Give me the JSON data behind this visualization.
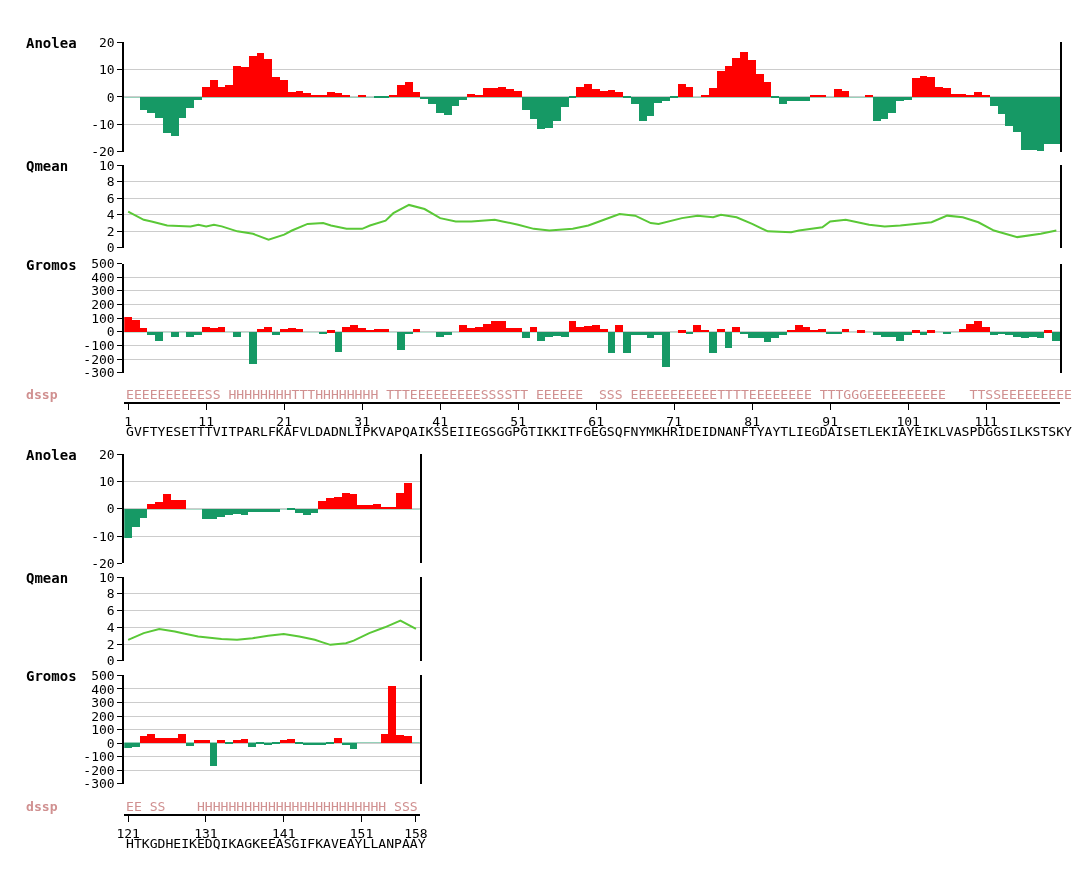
{
  "chart_data": [
    {
      "type": "bar",
      "title": "Anolea",
      "tick_labels": "y",
      "grid": "y",
      "ref_lines": [
        {
          "axis": "y",
          "value": 0,
          "color": "#169965"
        }
      ],
      "xlim": [
        0.5,
        120.5
      ],
      "ylim": [
        -20,
        20
      ],
      "yticks": [
        -20,
        -10,
        0,
        10,
        20
      ],
      "x": [
        1,
        2,
        3,
        4,
        5,
        6,
        7,
        8,
        9,
        10,
        11,
        12,
        13,
        14,
        15,
        16,
        17,
        18,
        19,
        20,
        21,
        22,
        23,
        24,
        25,
        26,
        27,
        28,
        29,
        30,
        31,
        32,
        33,
        34,
        35,
        36,
        37,
        38,
        39,
        40,
        41,
        42,
        43,
        44,
        45,
        46,
        47,
        48,
        49,
        50,
        51,
        52,
        53,
        54,
        55,
        56,
        57,
        58,
        59,
        60,
        61,
        62,
        63,
        64,
        65,
        66,
        67,
        68,
        69,
        70,
        71,
        72,
        73,
        74,
        75,
        76,
        77,
        78,
        79,
        80,
        81,
        82,
        83,
        84,
        85,
        86,
        87,
        88,
        89,
        90,
        91,
        92,
        93,
        94,
        95,
        96,
        97,
        98,
        99,
        100,
        101,
        102,
        103,
        104,
        105,
        106,
        107,
        108,
        109,
        110,
        111,
        112,
        113,
        114,
        115,
        116,
        117,
        118,
        119,
        120
      ],
      "values": [
        0,
        0,
        -4.8,
        -5.9,
        -7.8,
        -13.5,
        -14.5,
        -7.8,
        -4.2,
        -1.2,
        3.6,
        6.1,
        3.6,
        4.2,
        11.2,
        10.7,
        14.8,
        15.8,
        13.6,
        7.1,
        6.1,
        1.6,
        2.2,
        1.2,
        0.6,
        0.6,
        1.6,
        1.2,
        0.6,
        0,
        0.6,
        0,
        -0.6,
        -0.6,
        0.6,
        4.2,
        5.2,
        1.6,
        -0.8,
        -2.9,
        -5.9,
        -6.9,
        -3.3,
        -1.4,
        1.0,
        0.6,
        3.1,
        3.1,
        3.6,
        2.8,
        2.2,
        -4.8,
        -8.4,
        -12.0,
        -11.4,
        -8.9,
        -3.9,
        -0.4,
        3.6,
        4.6,
        2.8,
        2.2,
        2.5,
        1.6,
        -0.4,
        -2.9,
        -8.9,
        -7.2,
        -2.4,
        -1.8,
        -0.6,
        4.6,
        3.6,
        0,
        0.6,
        3.1,
        9.3,
        11.2,
        14.2,
        16.3,
        13.3,
        8.2,
        5.2,
        -0.6,
        -2.9,
        -1.6,
        -1.8,
        -1.8,
        0.6,
        0.6,
        0,
        2.8,
        2.2,
        0,
        0,
        0.6,
        -8.9,
        -8.4,
        -5.9,
        -1.8,
        -1.4,
        6.7,
        7.6,
        7.2,
        3.6,
        3.1,
        1.1,
        1.1,
        0.7,
        1.6,
        0.6,
        -3.3,
        -6.5,
        -10.8,
        -12.9,
        -19.5,
        -19.5,
        -19.9,
        -17.5,
        -17.5
      ],
      "colors": [
        "#169965",
        "#169965",
        "#169965",
        "#169965",
        "#169965",
        "#169965",
        "#169965",
        "#169965",
        "#169965",
        "#169965",
        "#ff0000",
        "#ff0000",
        "#ff0000",
        "#ff0000",
        "#ff0000",
        "#ff0000",
        "#ff0000",
        "#ff0000",
        "#ff0000",
        "#ff0000",
        "#ff0000",
        "#ff0000",
        "#ff0000",
        "#ff0000",
        "#ff0000",
        "#ff0000",
        "#ff0000",
        "#ff0000",
        "#ff0000",
        "#169965",
        "#ff0000",
        "#169965",
        "#169965",
        "#169965",
        "#ff0000",
        "#ff0000",
        "#ff0000",
        "#ff0000",
        "#169965",
        "#169965",
        "#169965",
        "#169965",
        "#169965",
        "#169965",
        "#ff0000",
        "#ff0000",
        "#ff0000",
        "#ff0000",
        "#ff0000",
        "#ff0000",
        "#ff0000",
        "#169965",
        "#169965",
        "#169965",
        "#169965",
        "#169965",
        "#169965",
        "#169965",
        "#ff0000",
        "#ff0000",
        "#ff0000",
        "#ff0000",
        "#ff0000",
        "#ff0000",
        "#169965",
        "#169965",
        "#169965",
        "#169965",
        "#169965",
        "#169965",
        "#169965",
        "#ff0000",
        "#ff0000",
        "#169965",
        "#ff0000",
        "#ff0000",
        "#ff0000",
        "#ff0000",
        "#ff0000",
        "#ff0000",
        "#ff0000",
        "#ff0000",
        "#ff0000",
        "#169965",
        "#169965",
        "#169965",
        "#169965",
        "#169965",
        "#ff0000",
        "#ff0000",
        "#169965",
        "#ff0000",
        "#ff0000",
        "#169965",
        "#169965",
        "#ff0000",
        "#169965",
        "#169965",
        "#169965",
        "#169965",
        "#169965",
        "#ff0000",
        "#ff0000",
        "#ff0000",
        "#ff0000",
        "#ff0000",
        "#ff0000",
        "#ff0000",
        "#ff0000",
        "#ff0000",
        "#ff0000",
        "#169965",
        "#169965",
        "#169965",
        "#169965",
        "#169965",
        "#169965",
        "#169965",
        "#169965",
        "#169965"
      ]
    },
    {
      "type": "line",
      "title": "Qmean",
      "tick_labels": "y",
      "grid": "y",
      "xlim": [
        0.5,
        120.5
      ],
      "ylim": [
        0,
        10
      ],
      "yticks": [
        0,
        2,
        4,
        6,
        8,
        10
      ],
      "color": "#5ac837",
      "x": [
        1,
        3,
        4,
        6,
        9,
        10,
        11,
        12,
        13,
        15,
        17,
        19,
        21,
        22,
        24,
        26,
        27,
        29,
        31,
        32,
        34,
        35,
        37,
        39,
        41,
        43,
        45,
        48,
        49,
        51,
        53,
        55,
        58,
        60,
        62,
        64,
        66,
        68,
        69,
        72,
        74,
        76,
        77,
        79,
        81,
        83,
        86,
        87,
        90,
        91,
        93,
        96,
        98,
        100,
        104,
        106,
        108,
        110,
        112,
        115,
        118,
        120
      ],
      "values": [
        4.4,
        3.4,
        3.2,
        2.7,
        2.6,
        2.8,
        2.6,
        2.8,
        2.6,
        2.0,
        1.7,
        1.0,
        1.6,
        2.1,
        2.9,
        3.0,
        2.7,
        2.3,
        2.3,
        2.7,
        3.3,
        4.2,
        5.2,
        4.7,
        3.6,
        3.2,
        3.2,
        3.4,
        3.2,
        2.8,
        2.3,
        2.1,
        2.3,
        2.7,
        3.4,
        4.1,
        3.9,
        3.0,
        2.9,
        3.6,
        3.9,
        3.7,
        4.0,
        3.7,
        2.9,
        2.0,
        1.9,
        2.1,
        2.5,
        3.2,
        3.4,
        2.8,
        2.6,
        2.7,
        3.1,
        3.9,
        3.7,
        3.1,
        2.1,
        1.3,
        1.7,
        2.1
      ]
    },
    {
      "type": "bar",
      "title": "Gromos",
      "grid": "y",
      "ref_lines": [
        {
          "axis": "y",
          "value": 0,
          "color": "#169965"
        }
      ],
      "xlim": [
        0.5,
        120.5
      ],
      "xticks": [
        1,
        11,
        21,
        31,
        41,
        51,
        61,
        71,
        81,
        91,
        101,
        111
      ],
      "ylim": [
        -300,
        500
      ],
      "yticks": [
        -300,
        -200,
        -100,
        0,
        100,
        200,
        300,
        400,
        500
      ],
      "annotations": [
        "dssp",
        "EEEEEEEEEESS HHHHHHHHTTTHHHHHHHH TTTEEEEEEEEESSSSTT EEEEEE  SSS EEEEEEEEEEETTTTEEEEEEEE TTTGGGEEEEEEEEEE   TTSSEEEEEEEEE",
        "GVFTYESETTTVITPARLFKAFVLDADNLIPKVAPQAIKSSEIIEGSGGPGTIKKITFGEGSQFNYMKHRIDEIDNANFTYAYTLIEGDAISETLEKIAYEIKLVASPDGGSILKSTSKY"
      ],
      "x": [
        1,
        2,
        3,
        4,
        5,
        6,
        7,
        8,
        9,
        10,
        11,
        12,
        13,
        14,
        15,
        16,
        17,
        18,
        19,
        20,
        21,
        22,
        23,
        24,
        25,
        26,
        27,
        28,
        29,
        30,
        31,
        32,
        33,
        34,
        35,
        36,
        37,
        38,
        39,
        40,
        41,
        42,
        43,
        44,
        45,
        46,
        47,
        48,
        49,
        50,
        51,
        52,
        53,
        54,
        55,
        56,
        57,
        58,
        59,
        60,
        61,
        62,
        63,
        64,
        65,
        66,
        67,
        68,
        69,
        70,
        71,
        72,
        73,
        74,
        75,
        76,
        77,
        78,
        79,
        80,
        81,
        82,
        83,
        84,
        85,
        86,
        87,
        88,
        89,
        90,
        91,
        92,
        93,
        94,
        95,
        96,
        97,
        98,
        99,
        100,
        101,
        102,
        103,
        104,
        105,
        106,
        107,
        108,
        109,
        110,
        111,
        112,
        113,
        114,
        115,
        116,
        117,
        118,
        119,
        120
      ],
      "values": [
        112,
        93,
        33,
        -24,
        -62,
        0,
        -36,
        0,
        -36,
        -24,
        40,
        33,
        40,
        0,
        -36,
        0,
        -233,
        24,
        40,
        -24,
        21,
        33,
        21,
        0,
        0,
        -14,
        14,
        -145,
        40,
        52,
        29,
        17,
        21,
        21,
        0,
        -133,
        -14,
        21,
        0,
        0,
        -36,
        -24,
        0,
        52,
        33,
        40,
        60,
        83,
        83,
        33,
        33,
        -43,
        40,
        -62,
        -36,
        -26,
        -36,
        83,
        40,
        45,
        50,
        24,
        -155,
        52,
        -155,
        -24,
        -24,
        -43,
        -24,
        -252,
        0,
        14,
        -14,
        52,
        17,
        -155,
        24,
        -114,
        40,
        -14,
        -43,
        -43,
        -71,
        -43,
        -24,
        17,
        52,
        40,
        17,
        24,
        -14,
        -14,
        24,
        0,
        14,
        0,
        -24,
        -36,
        -38,
        -62,
        -24,
        14,
        -24,
        14,
        0,
        -14,
        0,
        24,
        60,
        83,
        40,
        -24,
        -14,
        -24,
        -36,
        -43,
        -36,
        -43,
        14,
        -62
      ],
      "colors": [
        "#ff0000",
        "#ff0000",
        "#ff0000",
        "#169965",
        "#169965",
        "#169965",
        "#169965",
        "#169965",
        "#169965",
        "#169965",
        "#ff0000",
        "#ff0000",
        "#ff0000",
        "#169965",
        "#169965",
        "#169965",
        "#169965",
        "#ff0000",
        "#ff0000",
        "#169965",
        "#ff0000",
        "#ff0000",
        "#ff0000",
        "#169965",
        "#169965",
        "#169965",
        "#ff0000",
        "#169965",
        "#ff0000",
        "#ff0000",
        "#ff0000",
        "#ff0000",
        "#ff0000",
        "#ff0000",
        "#169965",
        "#169965",
        "#169965",
        "#ff0000",
        "#169965",
        "#169965",
        "#169965",
        "#169965",
        "#169965",
        "#ff0000",
        "#ff0000",
        "#ff0000",
        "#ff0000",
        "#ff0000",
        "#ff0000",
        "#ff0000",
        "#ff0000",
        "#169965",
        "#ff0000",
        "#169965",
        "#169965",
        "#169965",
        "#169965",
        "#ff0000",
        "#ff0000",
        "#ff0000",
        "#ff0000",
        "#ff0000",
        "#169965",
        "#ff0000",
        "#169965",
        "#169965",
        "#169965",
        "#169965",
        "#169965",
        "#169965",
        "#169965",
        "#ff0000",
        "#169965",
        "#ff0000",
        "#ff0000",
        "#169965",
        "#ff0000",
        "#169965",
        "#ff0000",
        "#169965",
        "#169965",
        "#169965",
        "#169965",
        "#169965",
        "#169965",
        "#ff0000",
        "#ff0000",
        "#ff0000",
        "#ff0000",
        "#ff0000",
        "#169965",
        "#169965",
        "#ff0000",
        "#169965",
        "#ff0000",
        "#169965",
        "#169965",
        "#169965",
        "#169965",
        "#169965",
        "#169965",
        "#ff0000",
        "#169965",
        "#ff0000",
        "#169965",
        "#169965",
        "#169965",
        "#ff0000",
        "#ff0000",
        "#ff0000",
        "#ff0000",
        "#169965",
        "#169965",
        "#169965",
        "#169965",
        "#169965",
        "#169965",
        "#169965",
        "#ff0000",
        "#169965"
      ]
    },
    {
      "type": "bar",
      "title": "Anolea",
      "tick_labels": "y",
      "grid": "y",
      "ref_lines": [
        {
          "axis": "y",
          "value": 0,
          "color": "#169965"
        }
      ],
      "xlim": [
        120.5,
        158.5
      ],
      "ylim": [
        -20,
        20
      ],
      "yticks": [
        -20,
        -10,
        0,
        10,
        20
      ],
      "x": [
        121,
        122,
        123,
        124,
        125,
        126,
        127,
        128,
        129,
        130,
        131,
        132,
        133,
        134,
        135,
        136,
        137,
        138,
        139,
        140,
        141,
        142,
        143,
        144,
        145,
        146,
        147,
        148,
        149,
        150,
        151,
        152,
        153,
        154,
        155,
        156,
        157,
        158
      ],
      "values": [
        -10.8,
        -6.6,
        -3.3,
        1.7,
        2.3,
        5.2,
        3.1,
        3.1,
        0,
        0,
        -3.7,
        -3.7,
        -3.1,
        -2.2,
        -1.9,
        -2.3,
        -1.1,
        -1.1,
        -1.1,
        -1.1,
        0,
        -0.6,
        -1.7,
        -2.3,
        -1.7,
        2.6,
        3.7,
        4.2,
        5.8,
        5.2,
        1.3,
        1.3,
        1.7,
        0.7,
        0.7,
        5.7,
        9.3,
        0
      ],
      "colors": [
        "#169965",
        "#169965",
        "#169965",
        "#ff0000",
        "#ff0000",
        "#ff0000",
        "#ff0000",
        "#ff0000",
        "#169965",
        "#169965",
        "#169965",
        "#169965",
        "#169965",
        "#169965",
        "#169965",
        "#169965",
        "#169965",
        "#169965",
        "#169965",
        "#169965",
        "#169965",
        "#169965",
        "#169965",
        "#169965",
        "#169965",
        "#ff0000",
        "#ff0000",
        "#ff0000",
        "#ff0000",
        "#ff0000",
        "#ff0000",
        "#ff0000",
        "#ff0000",
        "#ff0000",
        "#ff0000",
        "#ff0000",
        "#ff0000",
        "#169965"
      ]
    },
    {
      "type": "line",
      "title": "Qmean",
      "tick_labels": "y",
      "grid": "y",
      "xlim": [
        120.5,
        158.5
      ],
      "ylim": [
        0,
        10
      ],
      "yticks": [
        0,
        2,
        4,
        6,
        8,
        10
      ],
      "color": "#5ac837",
      "x": [
        121,
        123,
        125,
        127,
        128,
        130,
        133,
        135,
        137,
        139,
        141,
        143,
        145,
        146,
        147,
        149,
        150,
        152,
        154,
        156,
        158
      ],
      "values": [
        2.5,
        3.3,
        3.8,
        3.5,
        3.3,
        2.9,
        2.6,
        2.5,
        2.7,
        3.0,
        3.2,
        2.9,
        2.5,
        2.2,
        1.9,
        2.1,
        2.4,
        3.3,
        4.0,
        4.8,
        3.8
      ]
    },
    {
      "type": "bar",
      "title": "Gromos",
      "grid": "y",
      "ref_lines": [
        {
          "axis": "y",
          "value": 0,
          "color": "#169965"
        }
      ],
      "xlim": [
        120.5,
        158.5
      ],
      "xticks": [
        121,
        131,
        141,
        151,
        158
      ],
      "ylim": [
        -300,
        500
      ],
      "yticks": [
        -300,
        -200,
        -100,
        0,
        100,
        200,
        300,
        400,
        500
      ],
      "annotations": [
        "dssp",
        "EE SS    HHHHHHHHHHHHHHHHHHHHHHHH SSS ",
        "HTKGDHEIKEDQIKAGKEEASGIFKAVEAYLLANPAAY"
      ],
      "x": [
        121,
        122,
        123,
        124,
        125,
        126,
        127,
        128,
        129,
        130,
        131,
        132,
        133,
        134,
        135,
        136,
        137,
        138,
        139,
        140,
        141,
        142,
        143,
        144,
        145,
        146,
        147,
        148,
        149,
        150,
        151,
        152,
        153,
        154,
        155,
        156,
        157,
        158
      ],
      "values": [
        -43,
        -31,
        46,
        65,
        36,
        36,
        36,
        65,
        -24,
        17,
        17,
        -176,
        17,
        -12,
        17,
        24,
        -31,
        -12,
        -19,
        -12,
        17,
        24,
        -12,
        -19,
        -19,
        -19,
        -7,
        36,
        -19,
        -48,
        0,
        0,
        0,
        65,
        419,
        58,
        46,
        0
      ],
      "colors": [
        "#169965",
        "#169965",
        "#ff0000",
        "#ff0000",
        "#ff0000",
        "#ff0000",
        "#ff0000",
        "#ff0000",
        "#169965",
        "#ff0000",
        "#ff0000",
        "#169965",
        "#ff0000",
        "#169965",
        "#ff0000",
        "#ff0000",
        "#169965",
        "#169965",
        "#169965",
        "#169965",
        "#ff0000",
        "#ff0000",
        "#169965",
        "#169965",
        "#169965",
        "#169965",
        "#169965",
        "#ff0000",
        "#169965",
        "#169965",
        "#169965",
        "#169965",
        "#169965",
        "#ff0000",
        "#ff0000",
        "#ff0000",
        "#ff0000",
        "#169965"
      ]
    }
  ]
}
